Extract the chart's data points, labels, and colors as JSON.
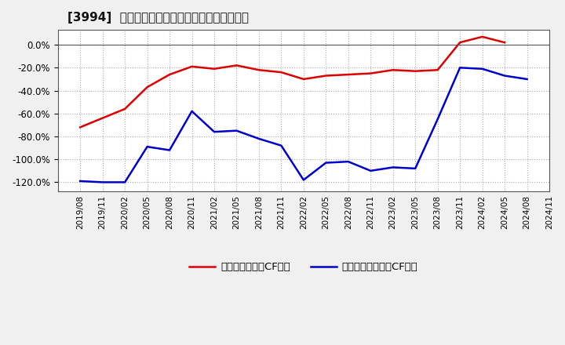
{
  "title": "[3994]  有利子負債キャッシュフロー比率の推移",
  "legend_red": "有利子負債営業CF比率",
  "legend_blue": "有利子負債フリーCF比率",
  "ylim": [
    -1.28,
    0.13
  ],
  "yticks": [
    0.0,
    -0.2,
    -0.4,
    -0.6,
    -0.8,
    -1.0,
    -1.2
  ],
  "background_color": "#f0f0f0",
  "plot_bg_color": "#ffffff",
  "red_color": "#dd0000",
  "blue_color": "#0000cc",
  "dates": [
    "2019/08",
    "2019/11",
    "2020/02",
    "2020/05",
    "2020/08",
    "2020/11",
    "2021/02",
    "2021/05",
    "2021/08",
    "2021/11",
    "2022/02",
    "2022/05",
    "2022/08",
    "2022/11",
    "2023/02",
    "2023/05",
    "2023/08",
    "2023/11",
    "2024/02",
    "2024/05",
    "2024/08",
    "2024/11"
  ],
  "red_values": [
    -0.72,
    -0.64,
    -0.56,
    -0.37,
    -0.26,
    -0.19,
    -0.21,
    -0.18,
    -0.22,
    -0.24,
    -0.3,
    -0.27,
    -0.26,
    -0.25,
    -0.22,
    -0.23,
    -0.22,
    0.02,
    0.07,
    0.02,
    null,
    null
  ],
  "blue_values": [
    -1.19,
    -1.2,
    -1.2,
    -0.89,
    -0.92,
    -0.58,
    -0.76,
    -0.75,
    -0.82,
    -0.88,
    -1.18,
    -1.03,
    -1.02,
    -1.1,
    -1.07,
    -1.08,
    -0.65,
    -0.2,
    -0.21,
    -0.27,
    -0.3,
    null
  ]
}
